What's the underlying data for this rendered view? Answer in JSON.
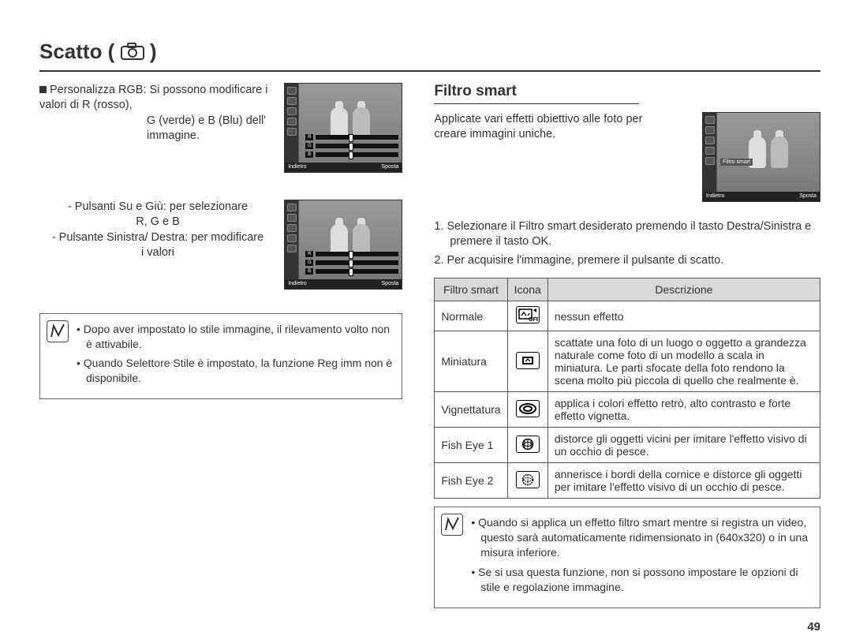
{
  "page": {
    "title_prefix": "Scatto (",
    "title_suffix": " )",
    "number": "49"
  },
  "left": {
    "rgb_intro": "Personalizza RGB: Si possono modificare i valori di R (rosso),",
    "rgb_line2": "G (verde) e B (Blu) dell'",
    "rgb_line3": "immagine.",
    "controls_updown": "- Pulsanti Su e Giù: per selezionare",
    "controls_updown_b": "R, G e B",
    "controls_lr": "- Pulsante Sinistra/ Destra: per modificare",
    "controls_lr_b": "i valori",
    "note1": "Dopo aver impostato lo stile immagine, il rilevamento volto non è attivabile.",
    "note2": "Quando Selettore Stile è impostato, la funzione Reg imm non è disponibile.",
    "thumb_back": "Indietro",
    "thumb_move": "Sposta",
    "rgb_r": "R",
    "rgb_g": "G",
    "rgb_b": "B"
  },
  "right": {
    "section_title": "Filtro smart",
    "intro": "Applicate vari effetti obiettivo alle foto per creare immagini uniche.",
    "step1_num": "1.",
    "step1": "Selezionare il Filtro smart desiderato premendo il tasto Destra/Sinistra e premere il tasto OK.",
    "step2_num": "2.",
    "step2": "Per acquisire l'immagine, premere il pulsante di scatto.",
    "th1": "Filtro smart",
    "th2": "Icona",
    "th3": "Descrizione",
    "rows": [
      {
        "name": "Normale",
        "desc": "nessun effetto",
        "icon": "off"
      },
      {
        "name": "Miniatura",
        "desc": "scattate una foto di un luogo o oggetto a grandezza naturale come foto di un modello a scala in miniatura. Le parti sfocate della foto rendono la scena molto più piccola di quello che realmente è.",
        "icon": "mini"
      },
      {
        "name": "Vignettatura",
        "desc": "applica i colori effetto retrò, alto contrasto e forte effetto vignetta.",
        "icon": "vig"
      },
      {
        "name": "Fish Eye 1",
        "desc": "distorce gli oggetti vicini per imitare l'effetto visivo di un occhio di pesce.",
        "icon": "fish1"
      },
      {
        "name": "Fish Eye 2",
        "desc": "annerisce i bordi della cornice e distorce gli oggetti per imitare l'effetto visivo di un occhio di pesce.",
        "icon": "fish2"
      }
    ],
    "note1": "Quando si applica un effetto filtro smart mentre si registra un video, questo sarà automaticamente ridimensionato in (640x320) o in una misura inferiore.",
    "note2": "Se si usa questa funzione, non si possono impostare le opzioni di stile e regolazione immagine.",
    "thumb_label": "Filtro smart",
    "thumb_back": "Indietro",
    "thumb_move": "Sposta"
  }
}
